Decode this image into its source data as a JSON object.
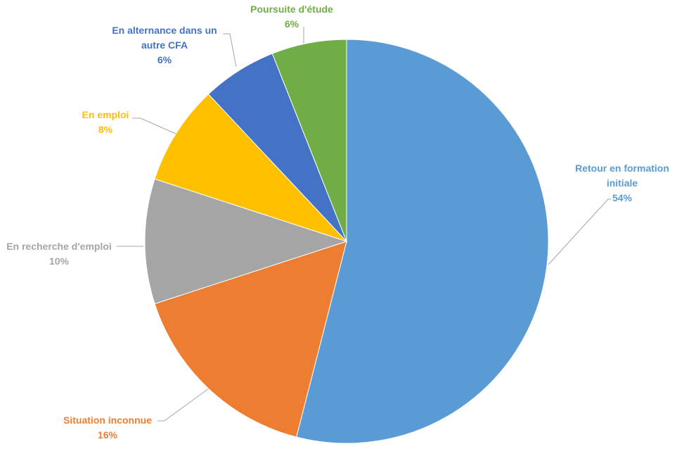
{
  "chart_data": {
    "type": "pie",
    "title": "",
    "slices": [
      {
        "label": "Retour en formation initiale",
        "label_lines": [
          "Retour en formation",
          "initiale"
        ],
        "value": 54,
        "value_label": "54%",
        "color": "#5B9BD5"
      },
      {
        "label": "Situation inconnue",
        "label_lines": [
          "Situation inconnue"
        ],
        "value": 16,
        "value_label": "16%",
        "color": "#ED7D31"
      },
      {
        "label": "En recherche d'emploi",
        "label_lines": [
          "En recherche d'emploi"
        ],
        "value": 10,
        "value_label": "10%",
        "color": "#A5A5A5"
      },
      {
        "label": "En emploi",
        "label_lines": [
          "En emploi"
        ],
        "value": 8,
        "value_label": "8%",
        "color": "#FFC000"
      },
      {
        "label": "En alternance dans un autre CFA",
        "label_lines": [
          "En alternance dans un",
          "autre CFA"
        ],
        "value": 6,
        "value_label": "6%",
        "color": "#4472C4"
      },
      {
        "label": "Poursuite d'étude",
        "label_lines": [
          "Poursuite d'étude"
        ],
        "value": 6,
        "value_label": "6%",
        "color": "#70AD47"
      }
    ],
    "start": "12 o'clock",
    "direction": "clockwise",
    "legend": "none"
  }
}
